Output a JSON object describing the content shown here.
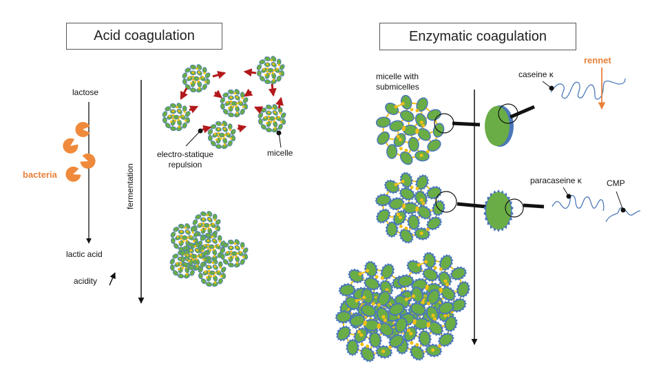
{
  "acid": {
    "title": "Acid coagulation",
    "lactose": "lactose",
    "bacteria": "bacteria",
    "lactic_acid": "lactic acid",
    "acidity": "acidity",
    "fermentation": "fermentation",
    "repulsion_line1": "electro-statique",
    "repulsion_line2": "repulsion",
    "micelle": "micelle"
  },
  "enzymatic": {
    "title": "Enzymatic coagulation",
    "micelle_line1": "micelle with",
    "micelle_line2": "submicelles",
    "caseine": "caseine κ",
    "rennet": "rennet",
    "paracaseine": "paracaseine κ",
    "cmp": "CMP"
  },
  "colors": {
    "submicelle": "#6aad46",
    "submicelle_edge": "#4b78b8",
    "node": "#f2bf16",
    "arrow_red": "#b3191b",
    "orange": "#e8803a",
    "bacteria": "#ef8a3c",
    "chain": "#4b78b8"
  }
}
